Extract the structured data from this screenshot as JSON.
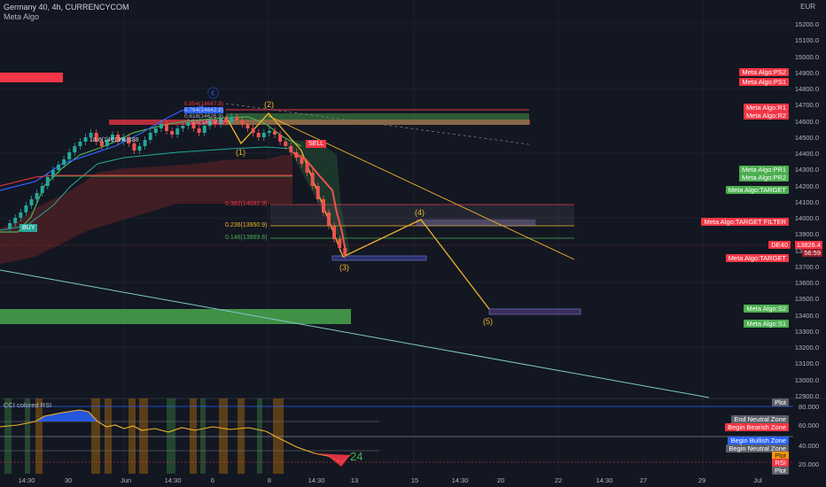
{
  "header": {
    "symbol": "Germany 40, 4h, CURRENCYCOM",
    "indicator": "Meta Algo",
    "currency": "EUR"
  },
  "price_axis": [
    "15200.0",
    "15100.0",
    "15000.0",
    "14900.0",
    "14800.0",
    "14700.0",
    "14600.0",
    "14500.0",
    "14400.0",
    "14300.0",
    "14200.0",
    "14100.0",
    "14000.0",
    "13900.0",
    "13800.0",
    "13700.0",
    "13600.0",
    "13500.0",
    "13400.0",
    "13300.0",
    "13200.0",
    "13100.0",
    "13000.0",
    "12900.0"
  ],
  "rsi_axis": [
    "80.000",
    "60.000",
    "40.000",
    "20.000"
  ],
  "time_axis": [
    "14:30",
    "30",
    "Jun",
    "14:30",
    "6",
    "8",
    "14:30",
    "13",
    "15",
    "14:30",
    "20",
    "22",
    "14:30",
    "27",
    "29",
    "Jul"
  ],
  "right_tags": {
    "ps2": "Meta Algo:PS2",
    "ps1": "Meta Algo:PS1",
    "r1": "Meta Algo:R1",
    "r2": "Meta Algo:R2",
    "pr1": "Meta Algo:PR1",
    "pr2": "Meta Algo:PR2",
    "target": "Meta Algo:TARGET",
    "target_filter": "Meta Algo:TARGET FILTER",
    "de40": "DE40",
    "last_price": "13826.4",
    "countdown": "56:59",
    "target2": "Meta Algo:TARGET",
    "s2": "Meta Algo:S2",
    "s1": "Meta Algo:S1"
  },
  "rsi_tags": {
    "plot": "Plot",
    "end_neutral": "End Neutral Zone",
    "begin_bearish": "Begin Bearish Zone",
    "begin_bullish": "Begin Bullish Zone",
    "begin_neutral": "Begin Neutral Zone",
    "plot2": "Plot",
    "rsi": "RSI",
    "plot3": "Plot"
  },
  "annotations": {
    "buy": "BUY",
    "sell": "SELL",
    "wave_c": "ⓒ",
    "wave1": "(1)",
    "wave2": "(2)",
    "wave3": "(3)",
    "wave4": "(4)",
    "wave5": "(5)",
    "fib0382": "0.382(14082.9)",
    "fib0236": "0.236(13950.9)",
    "fib0146": "0.146(13869.6)",
    "fib0854": "0.854(14647.8)",
    "fib0764": "0.764(14642.8)",
    "fib0618": "0.618(14626.9)",
    "fib06": "0.6(14607.3)",
    "mid_label": "18.6(14613%)188",
    "rsi_title": "CCI colored RSI",
    "rsi_value": "24"
  },
  "colors": {
    "bull": "#26a69a",
    "bear": "#ef5350",
    "accent_orange": "#f0b429",
    "green_zone": "#4caf50",
    "red_zone": "#f23645"
  }
}
